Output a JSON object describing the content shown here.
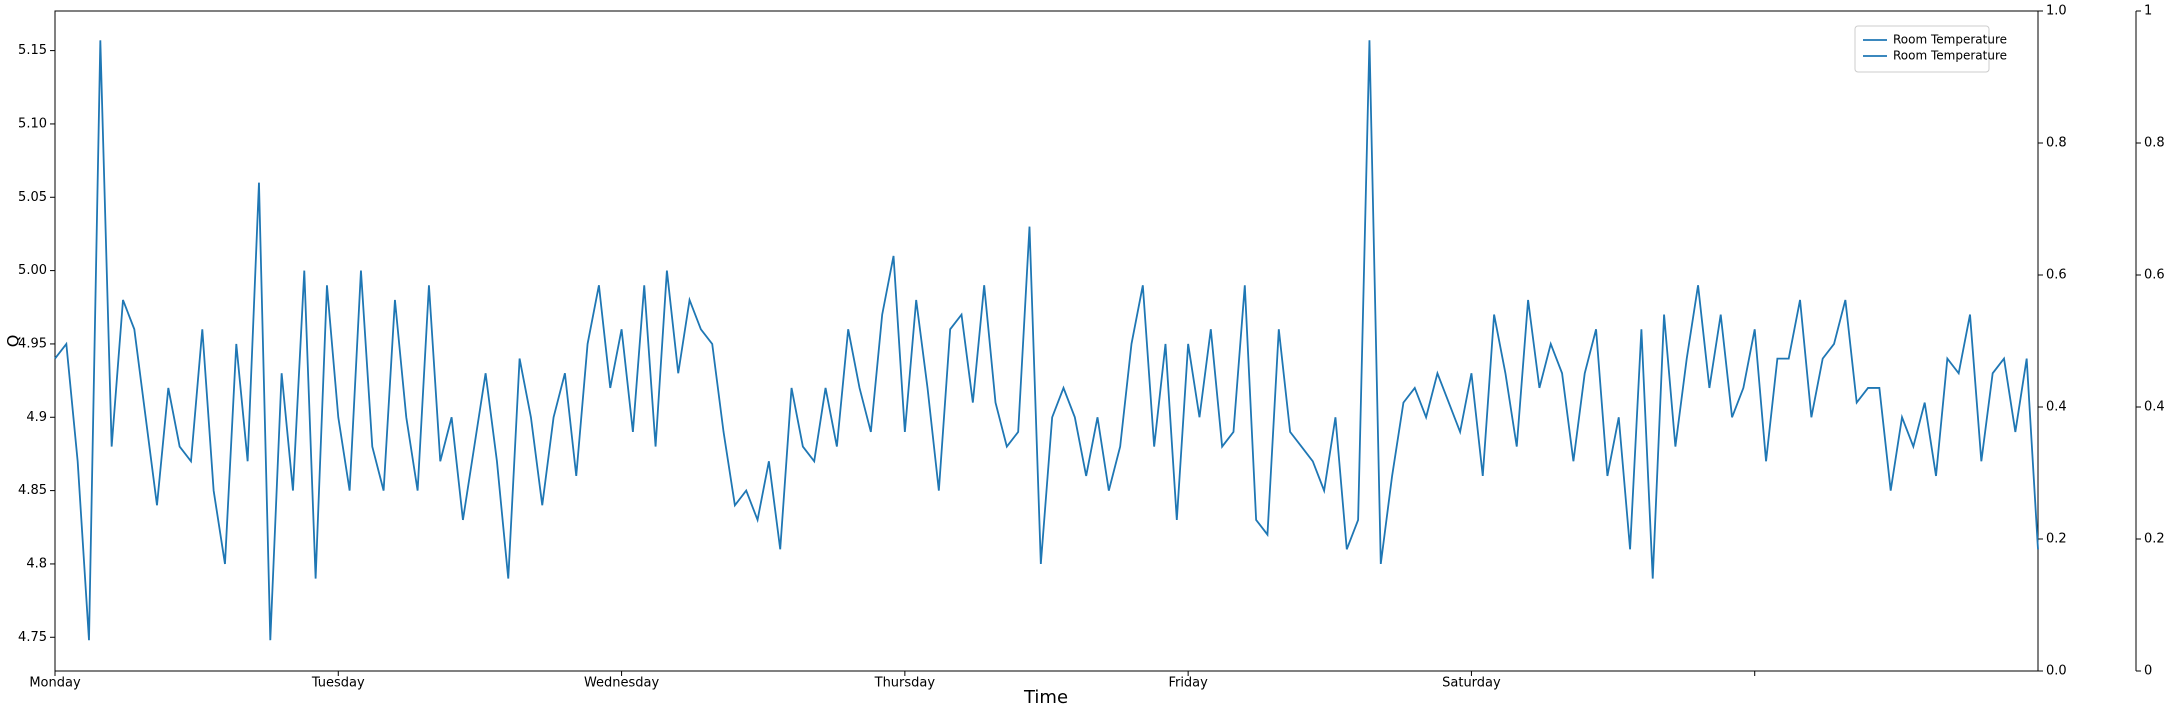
{
  "chart_data": {
    "type": "line",
    "xlabel": "Time",
    "ylabel": "Q",
    "x": [
      0,
      0.04,
      0.08,
      0.12,
      0.16,
      0.2,
      0.24,
      0.28,
      0.32,
      0.36,
      0.4,
      0.44,
      0.48,
      0.52,
      0.56,
      0.6,
      0.64,
      0.68,
      0.72,
      0.76,
      0.8,
      0.84,
      0.88,
      0.92,
      0.96,
      1,
      1.04,
      1.08,
      1.12,
      1.16,
      1.2,
      1.24,
      1.28,
      1.32,
      1.36,
      1.4,
      1.44,
      1.48,
      1.52,
      1.56,
      1.6,
      1.64,
      1.68,
      1.72,
      1.76,
      1.8,
      1.84,
      1.88,
      1.92,
      1.96,
      2,
      2.04,
      2.08,
      2.12,
      2.16,
      2.2,
      2.24,
      2.28,
      2.32,
      2.36,
      2.4,
      2.44,
      2.48,
      2.52,
      2.56,
      2.6,
      2.64,
      2.68,
      2.72,
      2.76,
      2.8,
      2.84,
      2.88,
      2.92,
      2.96,
      3,
      3.04,
      3.08,
      3.12,
      3.16,
      3.2,
      3.24,
      3.28,
      3.32,
      3.36,
      3.4,
      3.44,
      3.48,
      3.52,
      3.56,
      3.6,
      3.64,
      3.68,
      3.72,
      3.76,
      3.8,
      3.84,
      3.88,
      3.92,
      3.96,
      4,
      4.04,
      4.08,
      4.12,
      4.16,
      4.2,
      4.24,
      4.28,
      4.32,
      4.36,
      4.4,
      4.44,
      4.48,
      4.52,
      4.56,
      4.6,
      4.64,
      4.68,
      4.72,
      4.76,
      4.8,
      4.84,
      4.88,
      4.92,
      4.96,
      5,
      5.04,
      5.08,
      5.12,
      5.16,
      5.2,
      5.24,
      5.28,
      5.32,
      5.36,
      5.4,
      5.44,
      5.48,
      5.52,
      5.56,
      5.6,
      5.64,
      5.68,
      5.72,
      5.76,
      5.8,
      5.84,
      5.88,
      5.92,
      5.96,
      6,
      6.04,
      6.08,
      6.12,
      6.16,
      6.2,
      6.24,
      6.28,
      6.32,
      6.36,
      6.4,
      6.44,
      6.48,
      6.52,
      6.56,
      6.6,
      6.64,
      6.68,
      6.72,
      6.76,
      6.8,
      6.84,
      6.88,
      6.92,
      6.96,
      7
    ],
    "series": [
      {
        "name": "Room Temperature",
        "color": "#1f77b4",
        "values": [
          4.94,
          4.95,
          4.87,
          4.748,
          5.157,
          4.88,
          4.98,
          4.96,
          4.9,
          4.84,
          4.92,
          4.88,
          4.87,
          4.96,
          4.85,
          4.8,
          4.95,
          4.87,
          5.06,
          4.748,
          4.93,
          4.85,
          5.0,
          4.79,
          4.99,
          4.9,
          4.85,
          5.0,
          4.88,
          4.85,
          4.98,
          4.9,
          4.85,
          4.99,
          4.87,
          4.9,
          4.83,
          4.88,
          4.93,
          4.87,
          4.79,
          4.94,
          4.9,
          4.84,
          4.9,
          4.93,
          4.86,
          4.95,
          4.99,
          4.92,
          4.96,
          4.89,
          4.99,
          4.88,
          5.0,
          4.93,
          4.98,
          4.96,
          4.95,
          4.89,
          4.84,
          4.85,
          4.83,
          4.87,
          4.81,
          4.92,
          4.88,
          4.87,
          4.92,
          4.88,
          4.96,
          4.92,
          4.89,
          4.97,
          5.01,
          4.89,
          4.98,
          4.92,
          4.85,
          4.96,
          4.97,
          4.91,
          4.99,
          4.91,
          4.88,
          4.89,
          5.03,
          4.8,
          4.9,
          4.92,
          4.9,
          4.86,
          4.9,
          4.85,
          4.88,
          4.95,
          4.99,
          4.88,
          4.95,
          4.83,
          4.95,
          4.9,
          4.96,
          4.88,
          4.89,
          4.99,
          4.83,
          4.82,
          4.96,
          4.89,
          4.88,
          4.87,
          4.85,
          4.9,
          4.81,
          4.83,
          5.157,
          4.8,
          4.86,
          4.91,
          4.92,
          4.9,
          4.93,
          4.91,
          4.89,
          4.93,
          4.86,
          4.97,
          4.93,
          4.88,
          4.98,
          4.92,
          4.95,
          4.93,
          4.87,
          4.93,
          4.96,
          4.86,
          4.9,
          4.81,
          4.96,
          4.79,
          4.97,
          4.88,
          4.94,
          4.99,
          4.92,
          4.97,
          4.9,
          4.92,
          4.96,
          4.87,
          4.94,
          4.94,
          4.98,
          4.9,
          4.94,
          4.95,
          4.98,
          4.91,
          4.92,
          4.92,
          4.85,
          4.9,
          4.88,
          4.91,
          4.86,
          4.94,
          4.93,
          4.97,
          4.87,
          4.93,
          4.94,
          4.89,
          4.94,
          4.81
        ]
      },
      {
        "name": "Room Temperature",
        "color": "#1f77b4"
      }
    ],
    "xlim": [
      0,
      7
    ],
    "xticks": [
      0,
      1,
      2,
      3,
      4,
      5,
      6
    ],
    "xtick_labels": [
      "Monday",
      "Tuesday",
      "Wednesday",
      "Thursday",
      "Friday",
      "Saturday",
      null
    ],
    "ylim": [
      4.727,
      5.177
    ],
    "yticks": [
      4.75,
      4.8,
      4.85,
      4.9,
      4.95,
      {
        "value": 5,
        "label": "5.00"
      },
      5.05,
      {
        "value": 5.1,
        "label": "5.10"
      },
      5.15
    ],
    "y2lim": [
      0,
      1
    ],
    "y2ticks": [
      {
        "value": 0,
        "label": "0.0"
      },
      0.2,
      0.4,
      0.6,
      0.8,
      {
        "value": 1,
        "label": "1.0"
      }
    ],
    "y3lim": [
      0,
      1
    ],
    "y3ticks": [
      0,
      0.2,
      0.4,
      0.6,
      0.8,
      1
    ],
    "legend": "upper right",
    "grid": false
  }
}
